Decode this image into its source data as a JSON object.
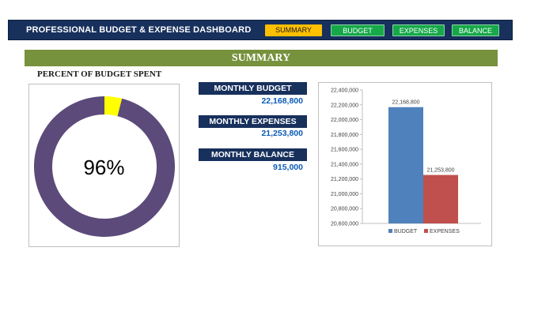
{
  "header": {
    "title": "PROFESSIONAL BUDGET & EXPENSE DASHBOARD",
    "nav": [
      "SUMMARY",
      "BUDGET",
      "EXPENSES",
      "BALANCE"
    ],
    "active_tab": "SUMMARY",
    "active_color": "#ffc000",
    "tab_color": "#17a84a",
    "bar_color": "#17305c"
  },
  "section": {
    "title": "SUMMARY",
    "color": "#76923c"
  },
  "donut": {
    "title": "PERCENT OF BUDGET SPENT",
    "percent_label": "96%",
    "percent_value": 0.96,
    "spent_color": "#5b4a7a",
    "remaining_color": "#ffff00"
  },
  "kpis": [
    {
      "label": "MONTHLY BUDGET",
      "value": "22,168,800"
    },
    {
      "label": "MONTHLY EXPENSES",
      "value": "21,253,800"
    },
    {
      "label": "MONTHLY BALANCE",
      "value": "915,000"
    }
  ],
  "chart_data": {
    "type": "bar",
    "categories": [
      "BUDGET",
      "EXPENSES"
    ],
    "values": [
      22168800,
      21253800
    ],
    "data_labels": [
      "22,168,800",
      "21,253,800"
    ],
    "colors": [
      "#4f81bd",
      "#c0504d"
    ],
    "ylim": [
      20600000,
      22400000
    ],
    "ytick_labels": [
      "20,600,000",
      "20,800,000",
      "21,000,000",
      "21,200,000",
      "21,400,000",
      "21,600,000",
      "21,800,000",
      "22,000,000",
      "22,200,000",
      "22,400,000"
    ],
    "legend": [
      "BUDGET",
      "EXPENSES"
    ],
    "legend_position": "bottom",
    "grid": false
  }
}
